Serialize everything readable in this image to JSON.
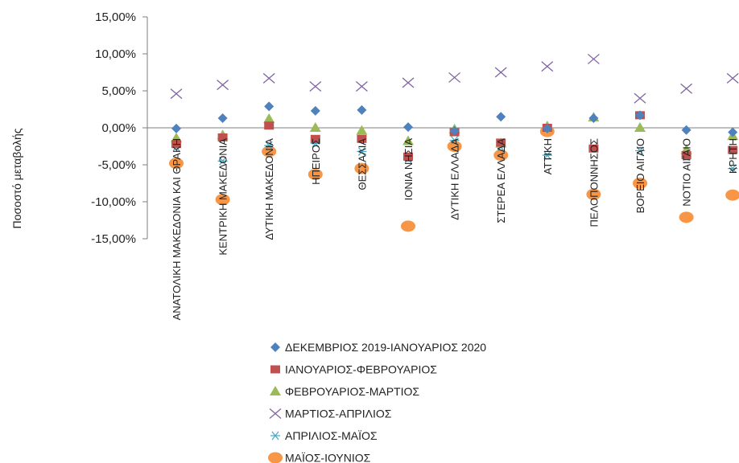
{
  "chart_data": {
    "type": "scatter",
    "title": "",
    "ylabel": "Ποσοστό μεταβολής",
    "xlabel": "",
    "ylim": [
      -0.15,
      0.15
    ],
    "y_ticks": [
      0.15,
      0.1,
      0.05,
      0.0,
      -0.05,
      -0.1,
      -0.15
    ],
    "y_tick_labels": [
      "15,00%",
      "10,00%",
      "5,00%",
      "0,00%",
      "-5,00%",
      "-10,00%",
      "-15,00%"
    ],
    "grid": false,
    "legend_position": "bottom",
    "categories": [
      "ΑΝΑΤΟΛΙΚΗ ΜΑΚΕΔΟΝΙΑ ΚΑΙ ΘΡΑΚΗ",
      "ΚΕΝΤΡΙΚΗ ΜΑΚΕΔΟΝΙΑ",
      "ΔΥΤΙΚΗ ΜΑΚΕΔΟΝΙΑ",
      "ΗΠΕΙΡΟΣ",
      "ΘΕΣΣΑΛΙΑ",
      "ΙΟΝΙΑ ΝΗΣΙΑ",
      "ΔΥΤΙΚΗ ΕΛΛΑΔΑ",
      "ΣΤΕΡΕΑ ΕΛΛΑΔΑ",
      "ΑΤΤΙΚΗ",
      "ΠΕΛΟΠΟΝΝΗΣΟΣ",
      "ΒΟΡΕΙΟ ΑΙΓΑΙΟ",
      "ΝΟΤΙΟ ΑΙΓΑΙΟ",
      "ΚΡΗΤΗ"
    ],
    "series": [
      {
        "name": "ΔΕΚΕΜΒΡΙΟΣ 2019-ΙΑΝΟΥΑΡΙΟΣ 2020",
        "marker": "diamond",
        "color": "#4F81BD",
        "values": [
          -0.001,
          0.013,
          0.029,
          0.023,
          0.024,
          0.001,
          -0.004,
          0.015,
          -0.001,
          0.013,
          0.017,
          -0.003,
          -0.006
        ]
      },
      {
        "name": "ΙΑΝΟΥΑΡΙΟΣ-ΦΕΒΡΟΥΑΡΙΟΣ",
        "marker": "square",
        "color": "#C0504D",
        "values": [
          -0.022,
          -0.013,
          0.003,
          -0.015,
          -0.015,
          -0.039,
          -0.006,
          -0.02,
          0.0,
          -0.028,
          0.017,
          -0.037,
          -0.03
        ]
      },
      {
        "name": "ΦΕΒΡΟΥΑΡΙΟΣ-ΜΑΡΤΙΟΣ",
        "marker": "triangle",
        "color": "#9BBB59",
        "values": [
          -0.014,
          -0.01,
          0.012,
          0.0,
          -0.004,
          -0.018,
          -0.002,
          -0.021,
          0.002,
          0.014,
          0.0,
          -0.03,
          -0.011
        ]
      },
      {
        "name": "ΜΑΡΤΙΟΣ-ΑΠΡΙΛΙΟΣ",
        "marker": "x",
        "color": "#8064A2",
        "values": [
          0.046,
          0.058,
          0.067,
          0.056,
          0.056,
          0.061,
          0.068,
          0.075,
          0.083,
          0.093,
          0.04,
          0.053,
          0.067
        ]
      },
      {
        "name": "ΑΠΡΙΛΙΟΣ-ΜΑΪΟΣ",
        "marker": "asterisk",
        "color": "#4BACC6",
        "values": [
          -0.026,
          -0.045,
          -0.024,
          -0.021,
          -0.032,
          -0.042,
          -0.017,
          -0.026,
          -0.037,
          -0.027,
          -0.031,
          -0.039,
          -0.055
        ]
      },
      {
        "name": "ΜΑΪΟΣ-ΙΟΥΝΙΟΣ",
        "marker": "circle",
        "color": "#F79646",
        "values": [
          -0.048,
          -0.097,
          -0.032,
          -0.063,
          -0.055,
          -0.133,
          -0.025,
          -0.037,
          -0.005,
          -0.09,
          -0.075,
          -0.121,
          -0.091
        ]
      }
    ]
  }
}
